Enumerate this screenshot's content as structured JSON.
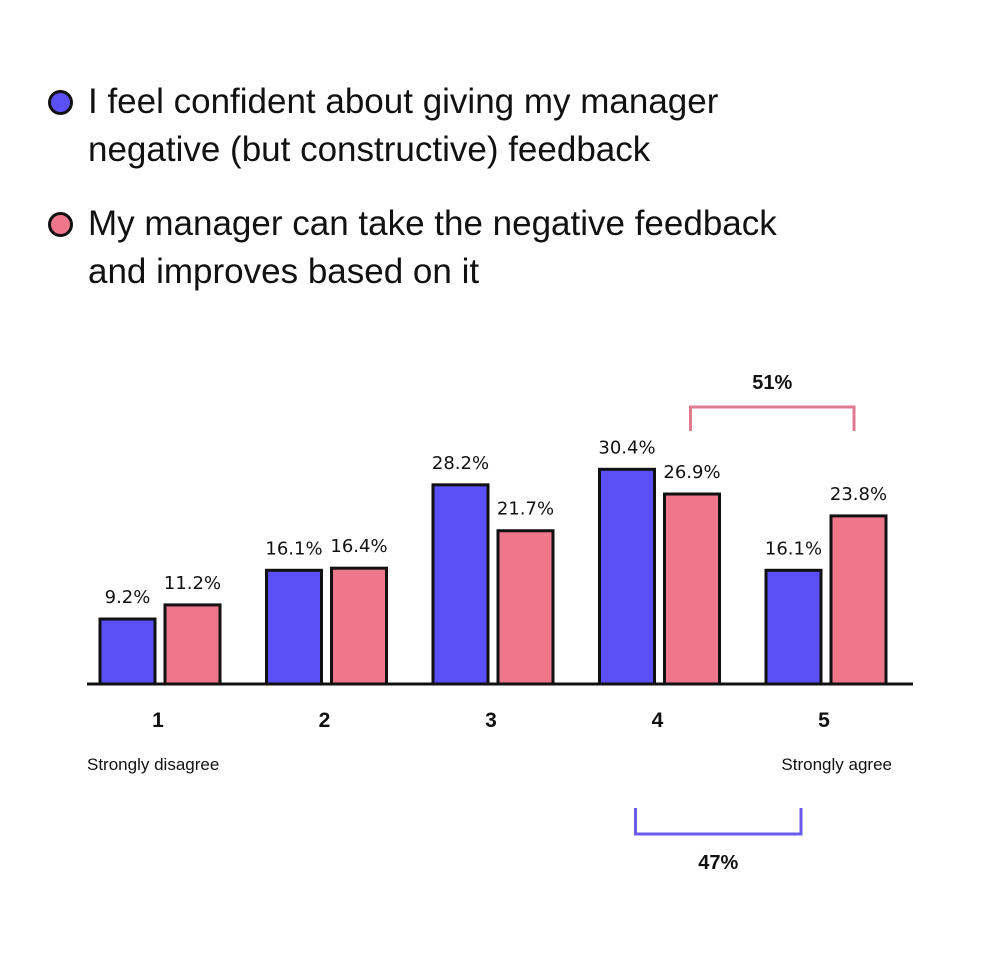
{
  "colors": {
    "series_a": "#5b50f7",
    "series_b": "#f0768b",
    "outline": "#111111",
    "bracket_b": "#e07a8f",
    "bracket_a": "#6a5ce8"
  },
  "chart_data": {
    "type": "bar",
    "categories": [
      "1",
      "2",
      "3",
      "4",
      "5"
    ],
    "series": [
      {
        "name": "I feel confident about giving my manager negative (but constructive) feedback",
        "values": [
          9.2,
          16.1,
          28.2,
          30.4,
          16.1
        ],
        "labels": [
          "9.2%",
          "16.1%",
          "28.2%",
          "30.4%",
          "16.1%"
        ]
      },
      {
        "name": "My manager can take the negative feedback and improves based on it",
        "values": [
          11.2,
          16.4,
          21.7,
          26.9,
          23.8
        ],
        "labels": [
          "11.2%",
          "16.4%",
          "21.7%",
          "26.9%",
          "23.8%"
        ]
      }
    ],
    "ylim": [
      0,
      32
    ],
    "scale_labels": {
      "low": "Strongly disagree",
      "high": "Strongly agree"
    },
    "annotations": [
      {
        "label": "51%",
        "series": 1,
        "categories": [
          "4",
          "5"
        ],
        "position": "above"
      },
      {
        "label": "47%",
        "series": 0,
        "categories": [
          "4",
          "5"
        ],
        "position": "below"
      }
    ]
  }
}
